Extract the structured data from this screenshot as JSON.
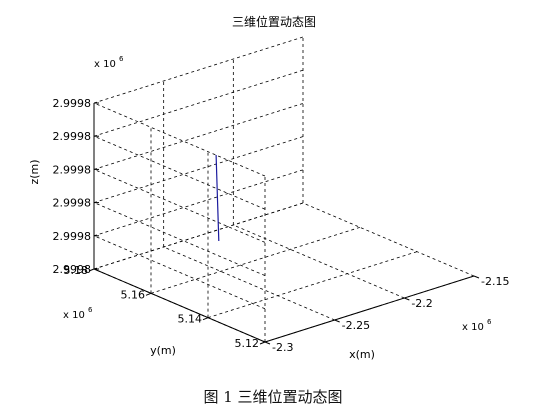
{
  "chart_data": {
    "type": "line",
    "title": "三维位置动态图",
    "xlabel": "x(m)",
    "ylabel": "y(m)",
    "zlabel": "z(m)",
    "x_ticks": [
      "-2.3",
      "-2.25",
      "-2.2",
      "-2.15"
    ],
    "y_ticks": [
      "5.12",
      "5.14",
      "5.16",
      "5.18"
    ],
    "z_ticks": [
      "2.9998",
      "2.9998",
      "2.9998",
      "2.9998",
      "2.9998",
      "2.9998"
    ],
    "x_exponent_label": "x 10",
    "x_exponent": "6",
    "y_exponent_label": "x 10",
    "y_exponent": "6",
    "z_exponent_label": "x 10",
    "z_exponent": "6",
    "xlim": [
      -2.3,
      -2.15
    ],
    "ylim": [
      5.12,
      5.18
    ],
    "zlim": [
      0,
      5
    ],
    "grid": true,
    "line_color": "#1a1a9e",
    "series": [
      {
        "x": [
          -2.2537,
          -2.2542
        ],
        "y": [
          5.1598,
          5.1586
        ],
        "z": [
          3.56,
          1.02
        ]
      }
    ]
  },
  "caption": "图 1  三维位置动态图"
}
